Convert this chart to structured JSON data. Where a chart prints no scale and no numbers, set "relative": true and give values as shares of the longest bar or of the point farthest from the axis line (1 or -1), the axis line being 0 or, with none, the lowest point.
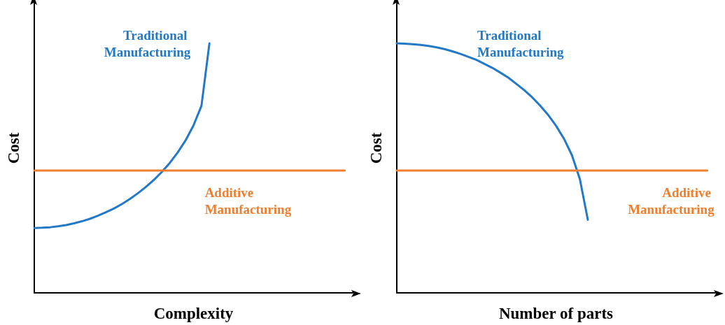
{
  "chart_data": [
    {
      "type": "line",
      "xlabel": "Complexity",
      "ylabel": "Cost",
      "relative": true,
      "grid": false,
      "legend": false,
      "marker": "none",
      "line_style": "solid",
      "categories": [
        null,
        null,
        null,
        null,
        null,
        null,
        null,
        null,
        null,
        null,
        null,
        null,
        null,
        null,
        null,
        null,
        null,
        null,
        null,
        null,
        null,
        null,
        null,
        null,
        null,
        null,
        null,
        null,
        null,
        null,
        null,
        null,
        null,
        null,
        null,
        null,
        null,
        null,
        null,
        null,
        null
      ],
      "series": [
        {
          "name": "Traditional Manufacturing",
          "color": "#2479c7",
          "values": [
            0.26,
            0.261,
            0.263,
            0.267,
            0.272,
            0.279,
            0.287,
            0.297,
            0.309,
            0.323,
            0.338,
            0.356,
            0.376,
            0.399,
            0.424,
            0.452,
            0.484,
            0.52,
            0.562,
            0.611,
            0.671,
            0.75,
            1,
            null,
            null,
            null,
            null,
            null,
            null,
            null,
            null,
            null,
            null,
            null,
            null,
            null,
            null,
            null,
            null,
            null,
            null
          ]
        },
        {
          "name": "Additive Manufacturing",
          "color": "#f07e2e",
          "values": [
            0.49,
            0.49,
            0.49,
            0.49,
            0.49,
            0.49,
            0.49,
            0.49,
            0.49,
            0.49,
            0.49,
            0.49,
            0.49,
            0.49,
            0.49,
            0.49,
            0.49,
            0.49,
            0.49,
            0.49,
            0.49,
            0.49,
            0.49,
            0.49,
            0.49,
            0.49,
            0.49,
            0.49,
            0.49,
            0.49,
            0.49,
            0.49,
            0.49,
            0.49,
            0.49,
            0.49,
            0.49,
            0.49,
            0.49,
            0.49,
            null
          ]
        }
      ]
    },
    {
      "type": "line",
      "xlabel": "Number of parts",
      "ylabel": "Cost",
      "relative": true,
      "grid": false,
      "legend": false,
      "marker": "none",
      "line_style": "solid",
      "categories": [
        null,
        null,
        null,
        null,
        null,
        null,
        null,
        null,
        null,
        null,
        null,
        null,
        null,
        null,
        null,
        null,
        null,
        null,
        null,
        null,
        null,
        null,
        null,
        null,
        null,
        null,
        null,
        null,
        null,
        null,
        null,
        null,
        null,
        null,
        null,
        null,
        null,
        null,
        null,
        null,
        null
      ],
      "series": [
        {
          "name": "Traditional Manufacturing",
          "color": "#2479c7",
          "values": [
            1,
            0.999,
            0.997,
            0.994,
            0.99,
            0.984,
            0.977,
            0.968,
            0.958,
            0.946,
            0.934,
            0.918,
            0.902,
            0.883,
            0.863,
            0.838,
            0.813,
            0.784,
            0.751,
            0.714,
            0.67,
            0.618,
            0.552,
            0.456,
            0.293,
            null,
            null,
            null,
            null,
            null,
            null,
            null,
            null,
            null,
            null,
            null,
            null,
            null,
            null,
            null,
            null
          ]
        },
        {
          "name": "Additive Manufacturing",
          "color": "#f07e2e",
          "values": [
            0.49,
            0.49,
            0.49,
            0.49,
            0.49,
            0.49,
            0.49,
            0.49,
            0.49,
            0.49,
            0.49,
            0.49,
            0.49,
            0.49,
            0.49,
            0.49,
            0.49,
            0.49,
            0.49,
            0.49,
            0.49,
            0.49,
            0.49,
            0.49,
            0.49,
            0.49,
            0.49,
            0.49,
            0.49,
            0.49,
            0.49,
            0.49,
            0.49,
            0.49,
            0.49,
            0.49,
            0.49,
            0.49,
            0.49,
            0.49,
            null
          ]
        }
      ]
    }
  ]
}
